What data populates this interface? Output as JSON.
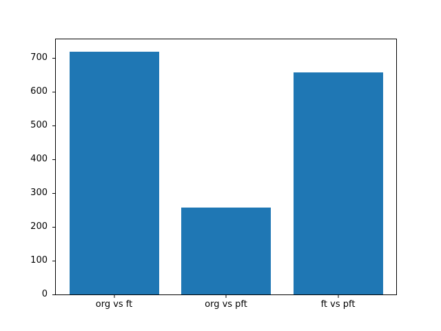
{
  "figure": {
    "background": "#ffffff"
  },
  "chart_data": {
    "type": "bar",
    "categories": [
      "org vs ft",
      "org vs pft",
      "ft vs pft"
    ],
    "values": [
      720,
      258,
      658
    ],
    "title": "",
    "xlabel": "",
    "ylabel": "",
    "ylim": [
      0,
      756
    ],
    "xlim": [
      -0.52,
      2.52
    ],
    "yticks": [
      0,
      100,
      200,
      300,
      400,
      500,
      600,
      700
    ],
    "bar_width": 0.8,
    "bar_color": "#1f77b4",
    "spine_color": "#000000",
    "tick_color": "#000000",
    "tick_label_color": "#000000",
    "grid": false,
    "legend": null
  }
}
